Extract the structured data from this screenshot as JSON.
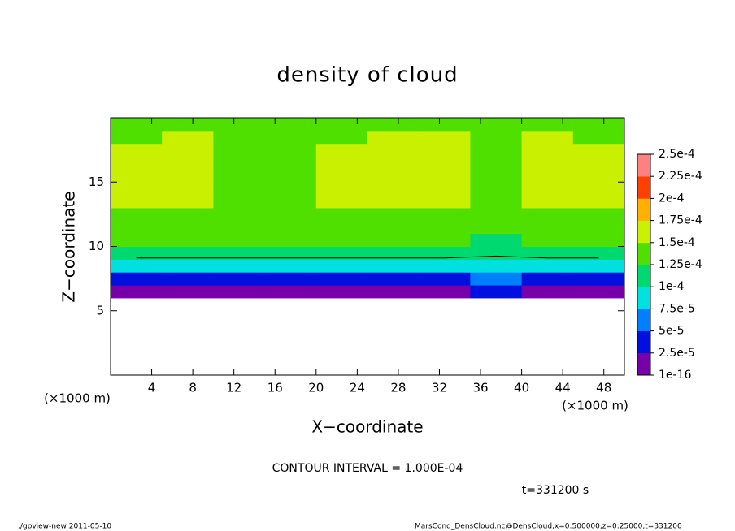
{
  "chart_data": {
    "type": "heatmap",
    "title": "density of cloud",
    "x_label": "X−coordinate",
    "y_label": "Z−coordinate",
    "x_unit_left": "(×1000 m)",
    "x_unit_right": "(×1000 m)",
    "contour_text": "CONTOUR INTERVAL = 1.000E-04",
    "contour_level": 0.0001,
    "time_text": "t=331200 s",
    "footer_left": "./gpview-new  2011-05-10",
    "footer_right": "MarsCond_DensCloud.nc@DensCloud,x=0:500000,z=0:25000,t=331200",
    "xlim": [
      0,
      50
    ],
    "ylim": [
      0,
      20
    ],
    "xticks": [
      4,
      8,
      12,
      16,
      20,
      24,
      28,
      32,
      36,
      40,
      44,
      48
    ],
    "yticks": [
      5,
      10,
      15
    ],
    "x": [
      2.5,
      7.5,
      12.5,
      17.5,
      22.5,
      27.5,
      32.5,
      37.5,
      42.5,
      47.5
    ],
    "y": [
      6.5,
      7.5,
      8.5,
      9.5,
      10.5,
      11.5,
      12.5,
      13.5,
      14.5,
      15.5,
      16.5,
      17.5,
      18.5,
      19.5
    ],
    "values": [
      [
        1e-05,
        1e-05,
        1e-05,
        1e-05,
        1e-05,
        1e-05,
        1e-05,
        3e-05,
        1e-05,
        1e-05
      ],
      [
        4e-05,
        4e-05,
        4e-05,
        4e-05,
        4e-05,
        4e-05,
        4e-05,
        6e-05,
        4e-05,
        4e-05
      ],
      [
        8.5e-05,
        8.5e-05,
        8.5e-05,
        8.5e-05,
        8.5e-05,
        8.5e-05,
        8.5e-05,
        8.5e-05,
        8.5e-05,
        8.5e-05
      ],
      [
        0.00011,
        0.00011,
        0.00011,
        0.00011,
        0.00011,
        0.00011,
        0.00011,
        0.000105,
        0.00011,
        0.00011
      ],
      [
        0.00013,
        0.00013,
        0.00013,
        0.00013,
        0.00013,
        0.00013,
        0.00013,
        0.00012,
        0.00013,
        0.00013
      ],
      [
        0.00014,
        0.00014,
        0.00014,
        0.00014,
        0.00014,
        0.00014,
        0.00014,
        0.00013,
        0.00014,
        0.00014
      ],
      [
        0.000145,
        0.000145,
        0.000145,
        0.000145,
        0.000145,
        0.000145,
        0.000145,
        0.00014,
        0.000145,
        0.000145
      ],
      [
        0.000155,
        0.000155,
        0.000145,
        0.000145,
        0.000155,
        0.000155,
        0.000155,
        0.00014,
        0.000155,
        0.000155
      ],
      [
        0.000155,
        0.000155,
        0.000145,
        0.000145,
        0.000155,
        0.000155,
        0.000155,
        0.00014,
        0.000155,
        0.000155
      ],
      [
        0.000155,
        0.000155,
        0.000145,
        0.000145,
        0.000155,
        0.000155,
        0.000155,
        0.00014,
        0.000155,
        0.000155
      ],
      [
        0.000155,
        0.000155,
        0.000145,
        0.000145,
        0.000155,
        0.000155,
        0.000155,
        0.00014,
        0.000155,
        0.000155
      ],
      [
        0.00015,
        0.00015,
        0.000145,
        0.000145,
        0.00015,
        0.00015,
        0.00015,
        0.00014,
        0.00015,
        0.00015
      ],
      [
        0.000145,
        0.00015,
        0.000145,
        0.000145,
        0.000145,
        0.00015,
        0.00015,
        0.000145,
        0.00015,
        0.000145
      ],
      [
        0.000145,
        0.000145,
        0.000145,
        0.000145,
        0.000145,
        0.000145,
        0.000145,
        0.000145,
        0.000145,
        0.000145
      ]
    ],
    "colorbar_ticks": [
      {
        "value": 1e-16,
        "label": "1e-16"
      },
      {
        "value": 2.5e-05,
        "label": "2.5e-5"
      },
      {
        "value": 5e-05,
        "label": "5e-5"
      },
      {
        "value": 7.5e-05,
        "label": "7.5e-5"
      },
      {
        "value": 0.0001,
        "label": "1e-4"
      },
      {
        "value": 0.000125,
        "label": "1.25e-4"
      },
      {
        "value": 0.00015,
        "label": "1.5e-4"
      },
      {
        "value": 0.000175,
        "label": "1.75e-4"
      },
      {
        "value": 0.0002,
        "label": "2e-4"
      },
      {
        "value": 0.000225,
        "label": "2.25e-4"
      },
      {
        "value": 0.00025,
        "label": "2.5e-4"
      }
    ],
    "colors": [
      "#7800a8",
      "#0010e0",
      "#0080ff",
      "#00e0e0",
      "#00d870",
      "#50e000",
      "#c8f000",
      "#ffb000",
      "#ff4000",
      "#ff8080"
    ]
  }
}
